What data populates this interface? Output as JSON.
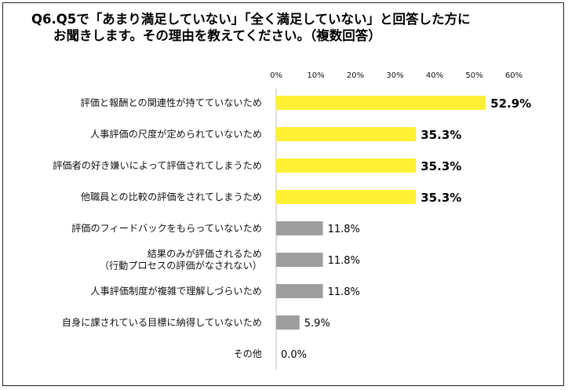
{
  "title": {
    "line1": "Q6.Q5で「あまり満足していない」「全く満足していない」と回答した方に",
    "line2": "お聞きします。その理由を教えてください。（複数回答）"
  },
  "chart_data": {
    "type": "bar",
    "orientation": "horizontal",
    "xlim": [
      0,
      60
    ],
    "ticks": [
      "0%",
      "10%",
      "20%",
      "30%",
      "40%",
      "50%",
      "60%"
    ],
    "categories": [
      [
        "評価と報酬との関連性が持てていないため"
      ],
      [
        "人事評価の尺度が定められていないため"
      ],
      [
        "評価者の好き嫌いによって評価されてしまうため"
      ],
      [
        "他職員との比較の評価をされてしまうため"
      ],
      [
        "評価のフィードバックをもらっていないため"
      ],
      [
        "結果のみが評価されるため",
        "（行動プロセスの評価がなされない）"
      ],
      [
        "人事評価制度が複雑で理解しづらいため"
      ],
      [
        "自身に課されている目標に納得していないため"
      ],
      [
        "その他"
      ]
    ],
    "values": [
      52.9,
      35.3,
      35.3,
      35.3,
      11.8,
      11.8,
      11.8,
      5.9,
      0.0
    ],
    "labels": [
      "52.9%",
      "35.3%",
      "35.3%",
      "35.3%",
      "11.8%",
      "11.8%",
      "11.8%",
      "5.9%",
      "0.0%"
    ],
    "highlight_count": 4,
    "colors": {
      "highlight": "#FFF033",
      "normal": "#9E9E9E",
      "axis": "#BDBDBD"
    },
    "grid": false,
    "legend": "none"
  }
}
